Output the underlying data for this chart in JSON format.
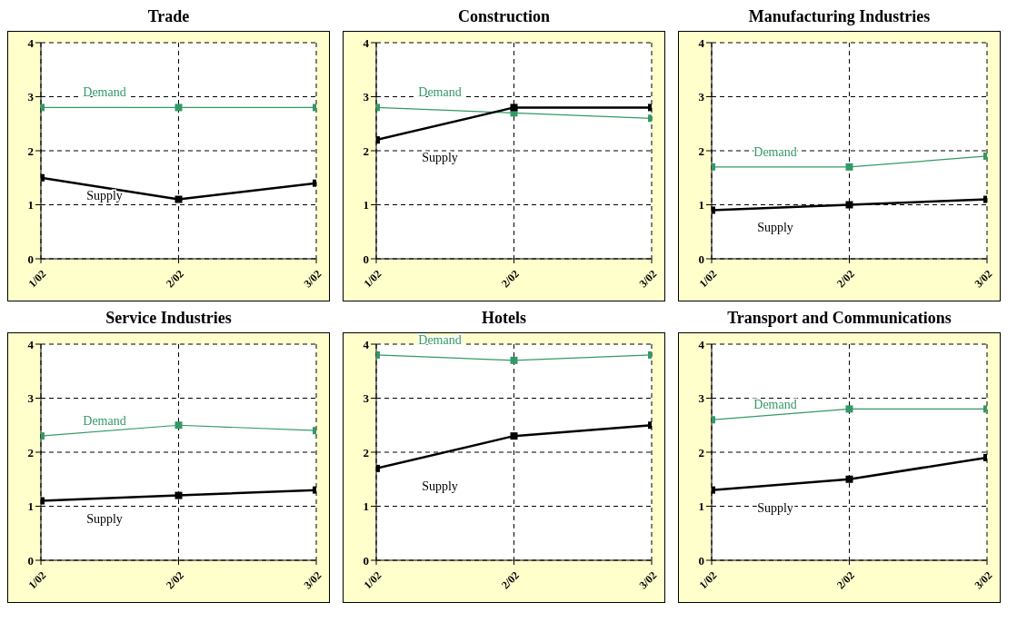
{
  "chart_data": [
    {
      "type": "line",
      "title": "Trade",
      "categories": [
        "1/02",
        "2/02",
        "3/02"
      ],
      "ylim": [
        0,
        4
      ],
      "yticks": [
        0,
        1,
        2,
        3,
        4
      ],
      "grid": true,
      "marker": "square",
      "legend": false,
      "series": [
        {
          "name": "Demand",
          "color": "#339966",
          "values": [
            2.8,
            2.8,
            2.8
          ]
        },
        {
          "name": "Supply",
          "color": "#000000",
          "values": [
            1.5,
            1.1,
            1.4
          ]
        }
      ]
    },
    {
      "type": "line",
      "title": "Construction",
      "categories": [
        "1/02",
        "2/02",
        "3/02"
      ],
      "ylim": [
        0,
        4
      ],
      "yticks": [
        0,
        1,
        2,
        3,
        4
      ],
      "grid": true,
      "marker": "square",
      "legend": false,
      "series": [
        {
          "name": "Demand",
          "color": "#339966",
          "values": [
            2.8,
            2.7,
            2.6
          ]
        },
        {
          "name": "Supply",
          "color": "#000000",
          "values": [
            2.2,
            2.8,
            2.8
          ]
        }
      ]
    },
    {
      "type": "line",
      "title": "Manufacturing Industries",
      "categories": [
        "1/02",
        "2/02",
        "3/02"
      ],
      "ylim": [
        0,
        4
      ],
      "yticks": [
        0,
        1,
        2,
        3,
        4
      ],
      "grid": true,
      "marker": "square",
      "legend": false,
      "series": [
        {
          "name": "Demand",
          "color": "#339966",
          "values": [
            1.7,
            1.7,
            1.9
          ]
        },
        {
          "name": "Supply",
          "color": "#000000",
          "values": [
            0.9,
            1.0,
            1.1
          ]
        }
      ]
    },
    {
      "type": "line",
      "title": "Service Industries",
      "categories": [
        "1/02",
        "2/02",
        "3/02"
      ],
      "ylim": [
        0,
        4
      ],
      "yticks": [
        0,
        1,
        2,
        3,
        4
      ],
      "grid": true,
      "marker": "square",
      "legend": false,
      "series": [
        {
          "name": "Demand",
          "color": "#339966",
          "values": [
            2.3,
            2.5,
            2.4
          ]
        },
        {
          "name": "Supply",
          "color": "#000000",
          "values": [
            1.1,
            1.2,
            1.3
          ]
        }
      ]
    },
    {
      "type": "line",
      "title": "Hotels",
      "categories": [
        "1/02",
        "2/02",
        "3/02"
      ],
      "ylim": [
        0,
        4
      ],
      "yticks": [
        0,
        1,
        2,
        3,
        4
      ],
      "grid": true,
      "marker": "square",
      "legend": false,
      "series": [
        {
          "name": "Demand",
          "color": "#339966",
          "values": [
            3.8,
            3.7,
            3.8
          ]
        },
        {
          "name": "Supply",
          "color": "#000000",
          "values": [
            1.7,
            2.3,
            2.5
          ]
        }
      ]
    },
    {
      "type": "line",
      "title": "Transport and Communications",
      "categories": [
        "1/02",
        "2/02",
        "3/02"
      ],
      "ylim": [
        0,
        4
      ],
      "yticks": [
        0,
        1,
        2,
        3,
        4
      ],
      "grid": true,
      "marker": "square",
      "legend": false,
      "series": [
        {
          "name": "Demand",
          "color": "#339966",
          "values": [
            2.6,
            2.8,
            2.8
          ]
        },
        {
          "name": "Supply",
          "color": "#000000",
          "values": [
            1.3,
            1.5,
            1.9
          ]
        }
      ]
    }
  ]
}
